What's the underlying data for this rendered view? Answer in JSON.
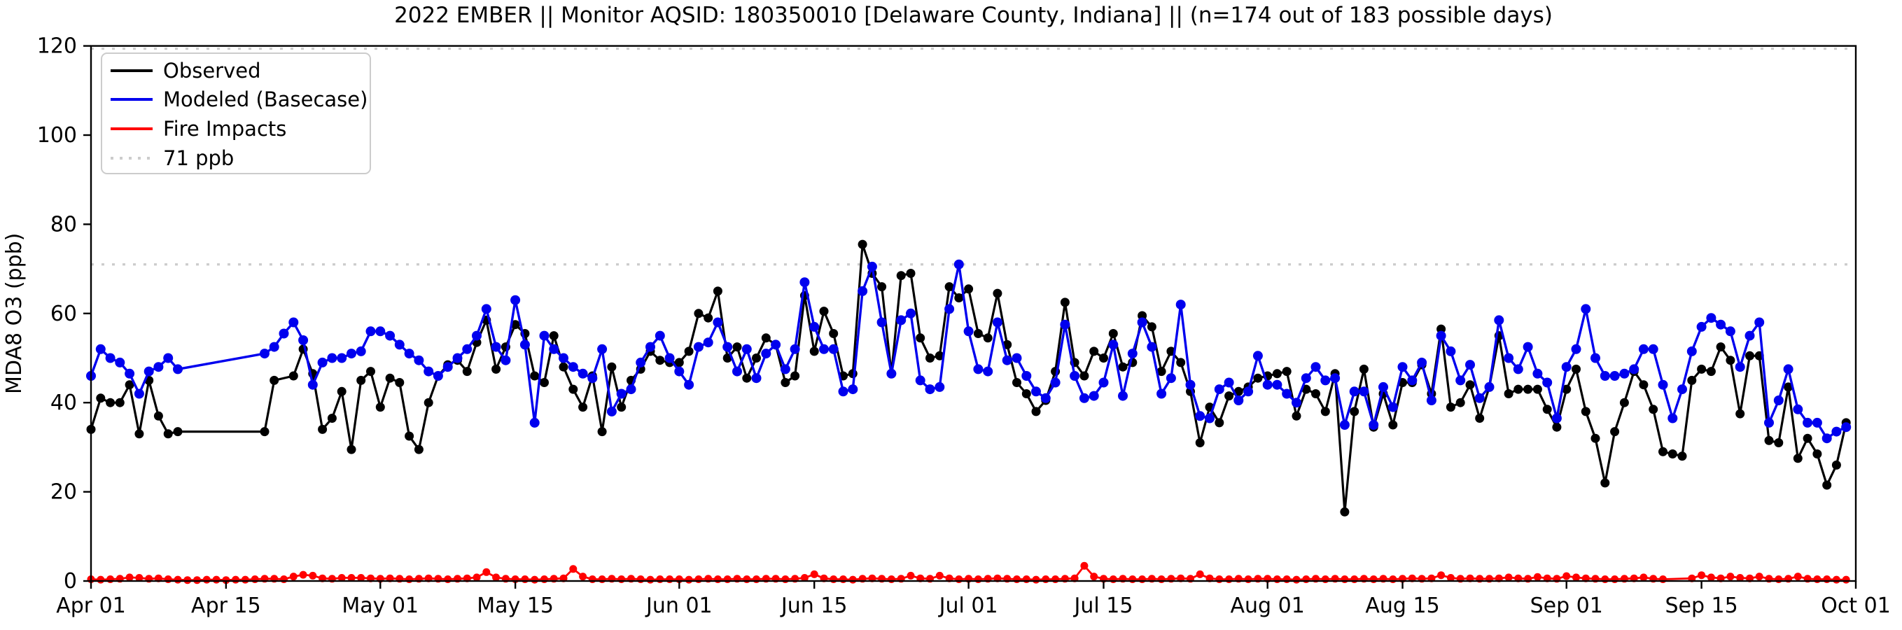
{
  "title": "2022 EMBER || Monitor AQSID: 180350010 [Delaware County, Indiana] || (n=174 out of 183 possible days)",
  "ylabel": "MDA8 O3 (ppb)",
  "legend": {
    "observed_label": "Observed",
    "modeled_label": "Modeled (Basecase)",
    "fire_label": "Fire Impacts",
    "threshold_label": "71 ppb"
  },
  "colors": {
    "observed": "#000000",
    "modeled": "#0000ee",
    "fire": "#ff0000",
    "threshold_line": "#cccccc",
    "legend_border": "#cccccc"
  },
  "chart_data": {
    "type": "line",
    "title": "2022 EMBER || Monitor AQSID: 180350010 [Delaware County, Indiana] || (n=174 out of 183 possible days)",
    "xlabel": "",
    "ylabel": "MDA8 O3 (ppb)",
    "ylim": [
      0,
      120
    ],
    "y_ticks": [
      0,
      20,
      40,
      60,
      80,
      100,
      120
    ],
    "x_start_date": "Apr 01",
    "x_end_date": "Oct 01",
    "days_total": 183,
    "n_observed": 174,
    "threshold_ppb": 71,
    "grid": false,
    "legend_position": "upper left",
    "x_tick_days": [
      0,
      14,
      30,
      44,
      61,
      75,
      91,
      105,
      122,
      136,
      153,
      167,
      183
    ],
    "x_tick_labels": [
      "Apr 01",
      "Apr 15",
      "May 01",
      "May 15",
      "Jun 01",
      "Jun 15",
      "Jul 01",
      "Jul 15",
      "Aug 01",
      "Aug 15",
      "Sep 01",
      "Sep 15",
      "Oct 01"
    ],
    "series": [
      {
        "name": "Observed",
        "values": [
          34,
          41,
          40,
          40,
          44,
          33,
          45,
          37,
          33,
          33.5,
          null,
          null,
          null,
          null,
          null,
          null,
          null,
          null,
          33.5,
          45,
          null,
          46,
          52,
          46.5,
          34,
          36.5,
          42.5,
          29.5,
          45,
          47,
          39,
          45.5,
          44.5,
          32.5,
          29.5,
          40,
          46,
          48.5,
          49.5,
          47,
          53.5,
          58.5,
          47.5,
          52.5,
          57.5,
          55.5,
          46,
          44.5,
          55,
          48,
          43,
          39,
          46,
          33.5,
          48,
          39,
          45,
          47.5,
          51.5,
          49.5,
          49,
          49,
          51.5,
          60,
          59,
          65,
          50,
          52.5,
          45.5,
          50,
          54.5,
          53,
          44.5,
          46,
          64,
          51.5,
          60.5,
          55.5,
          46,
          46.5,
          75.5,
          69,
          66,
          46.5,
          68.5,
          69,
          54.5,
          50,
          50.5,
          66,
          63.5,
          65.5,
          55.5,
          54.5,
          64.5,
          53,
          44.5,
          42,
          38,
          40.5,
          47,
          62.5,
          49,
          46,
          51.5,
          50,
          55.5,
          48,
          49,
          59.5,
          57,
          47,
          51.5,
          49,
          42.5,
          31,
          39,
          35.5,
          41.5,
          42.5,
          43.5,
          45.5,
          46,
          46.5,
          47,
          37,
          43,
          42,
          38,
          46.5,
          15.5,
          38,
          47.5,
          34.5,
          42,
          35,
          44.5,
          44.5,
          48.5,
          42,
          56.5,
          39,
          40,
          44,
          36.5,
          43.5,
          55,
          42,
          43,
          43,
          43,
          38.5,
          34.5,
          43,
          47.5,
          38,
          32,
          22,
          33.5,
          40,
          47,
          44,
          38.5,
          29,
          28.5,
          28,
          45,
          47.5,
          47,
          52.5,
          49.5,
          37.5,
          50.5,
          50.5,
          31.5,
          31,
          43.5,
          27.5,
          32,
          28.5,
          21.5,
          26,
          35.5
        ]
      },
      {
        "name": "Modeled (Basecase)",
        "values": [
          46,
          52,
          50,
          49,
          46.5,
          42,
          47,
          48,
          50,
          47.5,
          null,
          null,
          null,
          null,
          null,
          null,
          null,
          null,
          51,
          52.5,
          55.5,
          58,
          54,
          44,
          49,
          50,
          50,
          51,
          51.5,
          56,
          56,
          55,
          53,
          51,
          49.5,
          47,
          46,
          48,
          50,
          52,
          55,
          61,
          52.5,
          49.5,
          63,
          53,
          35.5,
          55,
          52,
          50,
          48,
          46.5,
          45.5,
          52,
          38,
          42,
          43,
          49,
          52.5,
          55,
          50,
          47,
          44,
          52.5,
          53.5,
          58,
          52.5,
          47,
          52,
          45.5,
          51,
          53,
          47.5,
          52,
          67,
          57,
          52,
          52,
          42.5,
          43,
          65,
          70.5,
          58,
          46.5,
          58.5,
          60,
          45,
          43,
          43.5,
          61,
          71,
          56,
          47.5,
          47,
          58,
          49.5,
          50,
          46,
          42.5,
          41,
          44.5,
          57.5,
          46,
          41,
          41.5,
          44.5,
          53,
          41.5,
          51,
          58,
          52.5,
          42,
          45.5,
          62,
          44,
          37,
          36.5,
          43,
          44.5,
          40.5,
          42.5,
          50.5,
          44,
          44,
          42,
          40,
          45.5,
          48,
          45,
          45.5,
          35,
          42.5,
          42.5,
          35,
          43.5,
          39,
          48,
          45,
          49,
          40.5,
          55,
          51.5,
          45,
          48.5,
          41,
          43.5,
          58.5,
          50,
          47.5,
          52.5,
          46.5,
          44.5,
          36.5,
          48,
          52,
          61,
          50,
          46,
          46,
          46.5,
          47.5,
          52,
          52,
          44,
          36.5,
          43,
          51.5,
          57,
          59,
          57.5,
          56,
          48,
          55,
          58,
          35.5,
          40.5,
          47.5,
          38.5,
          35.5,
          35.5,
          32,
          33.5,
          34.5
        ]
      },
      {
        "name": "Fire Impacts",
        "values": [
          0.4,
          0.3,
          0.4,
          0.5,
          0.8,
          0.7,
          0.5,
          0.6,
          0.4,
          0.3,
          0.2,
          0.2,
          0.3,
          0.3,
          0.2,
          0.3,
          0.3,
          0.4,
          0.5,
          0.5,
          0.4,
          1.0,
          1.4,
          1.2,
          0.6,
          0.5,
          0.7,
          0.7,
          0.7,
          0.6,
          0.5,
          0.6,
          0.5,
          0.4,
          0.5,
          0.6,
          0.5,
          0.4,
          0.5,
          0.6,
          0.8,
          2.0,
          0.8,
          0.5,
          0.4,
          0.4,
          0.3,
          0.4,
          0.5,
          0.6,
          2.7,
          1.0,
          0.4,
          0.4,
          0.5,
          0.4,
          0.5,
          0.4,
          0.3,
          0.4,
          0.4,
          0.4,
          0.3,
          0.4,
          0.5,
          0.4,
          0.4,
          0.5,
          0.4,
          0.4,
          0.5,
          0.5,
          0.4,
          0.5,
          0.7,
          1.5,
          0.6,
          0.4,
          0.4,
          0.3,
          0.5,
          0.6,
          0.5,
          0.4,
          0.5,
          1.2,
          0.6,
          0.5,
          1.2,
          0.6,
          0.4,
          0.5,
          0.4,
          0.5,
          0.6,
          0.5,
          0.4,
          0.4,
          0.3,
          0.4,
          0.4,
          0.5,
          0.6,
          3.4,
          1.0,
          0.5,
          0.4,
          0.5,
          0.4,
          0.4,
          0.5,
          0.4,
          0.5,
          0.6,
          0.5,
          1.5,
          0.6,
          0.4,
          0.4,
          0.5,
          0.4,
          0.5,
          0.5,
          0.4,
          0.4,
          0.3,
          0.4,
          0.5,
          0.4,
          0.5,
          0.4,
          0.4,
          0.5,
          0.4,
          0.5,
          0.4,
          0.5,
          0.6,
          0.5,
          0.6,
          1.3,
          0.7,
          0.5,
          0.6,
          0.5,
          0.5,
          0.6,
          0.8,
          0.6,
          0.5,
          0.9,
          0.6,
          0.5,
          1.1,
          0.8,
          0.6,
          0.5,
          0.4,
          0.4,
          0.5,
          0.6,
          0.8,
          0.5,
          0.4,
          null,
          null,
          0.6,
          1.3,
          0.8,
          0.6,
          1.0,
          0.7,
          0.6,
          1.0,
          0.5,
          0.4,
          0.5,
          1.0,
          0.5,
          0.4,
          0.4,
          0.3,
          0.3
        ]
      }
    ]
  }
}
